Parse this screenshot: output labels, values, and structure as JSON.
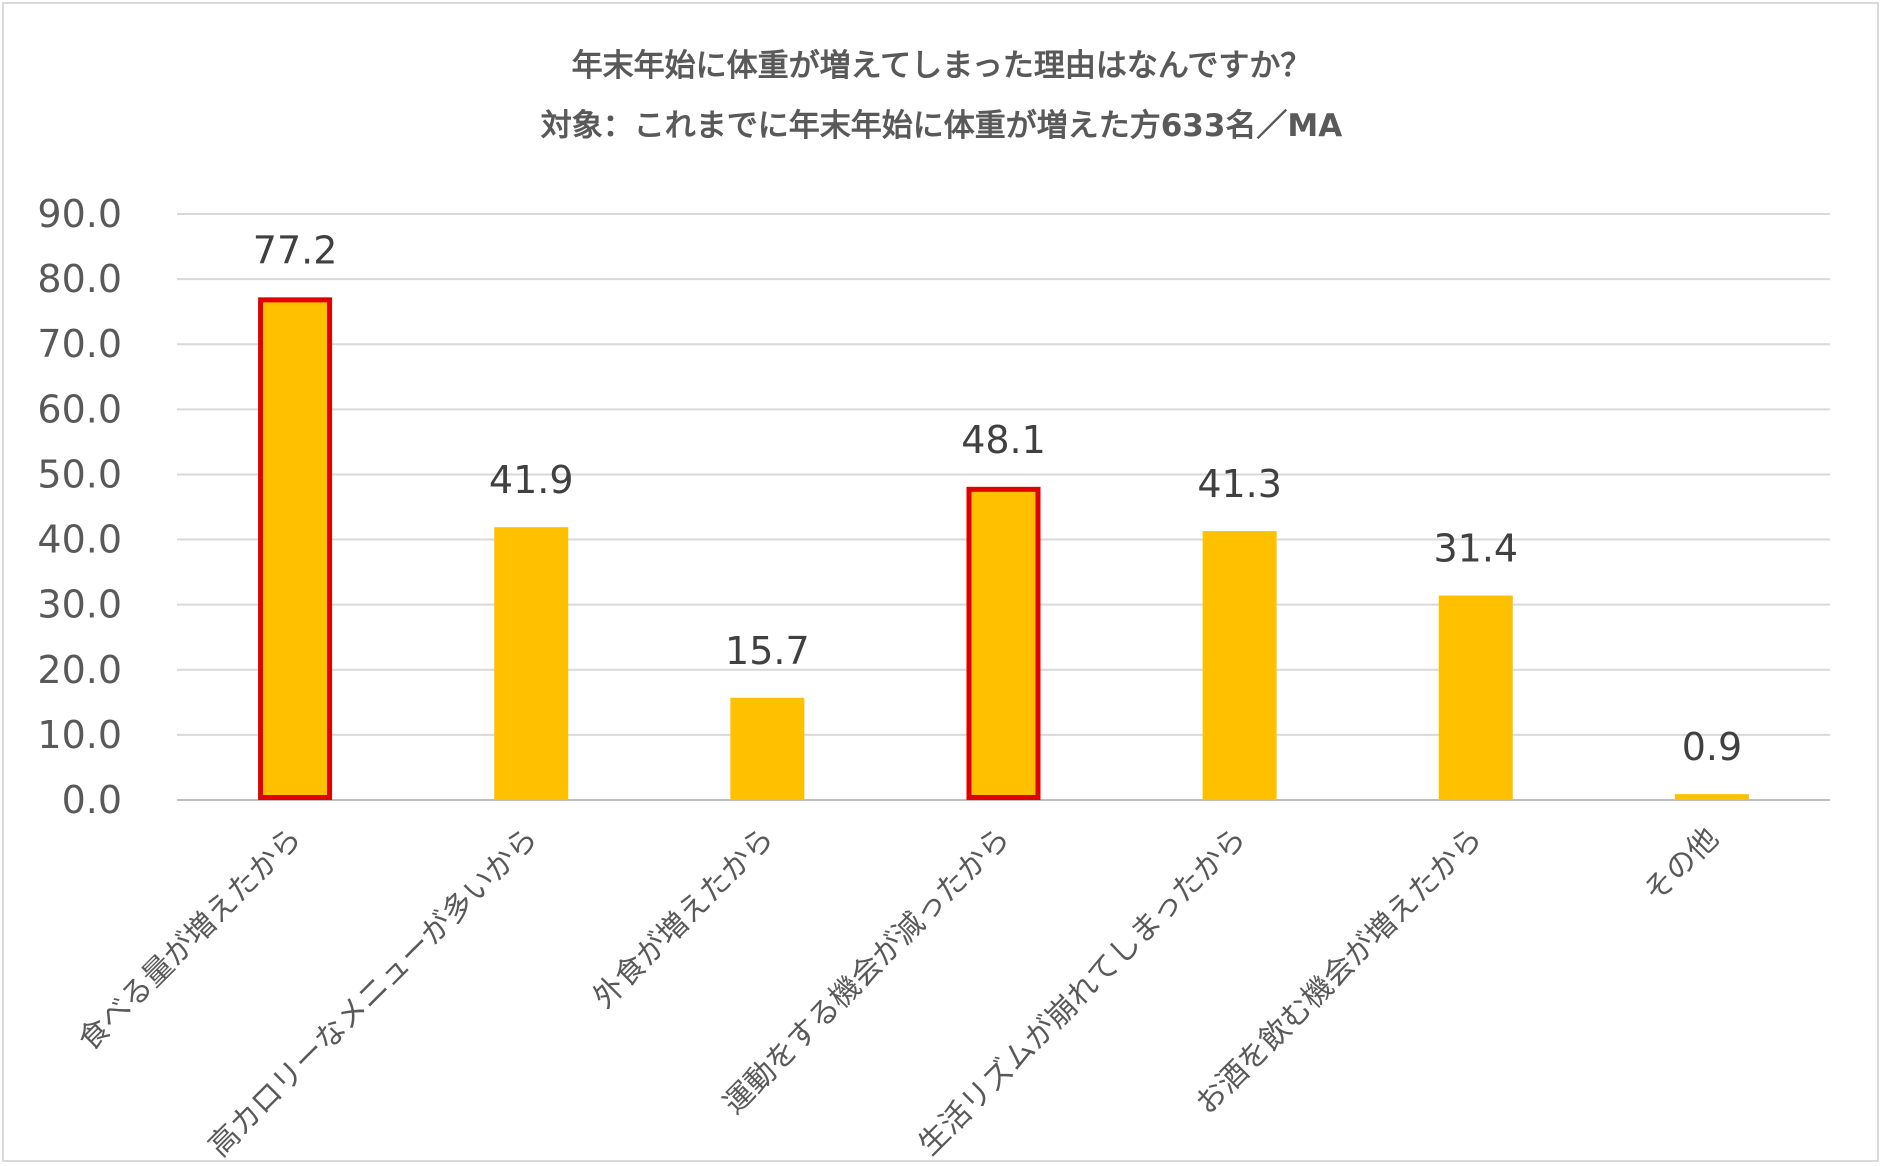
{
  "chart_data": {
    "type": "bar",
    "title": "年末年始に体重が増えてしまった理由はなんですか？",
    "subtitle": "対象：これまでに年末年始に体重が増えた方633名／MA",
    "categories": [
      "食べる量が増えたから",
      "高カロリーなメニューが多いから",
      "外食が増えたから",
      "運動をする機会が減ったから",
      "生活リズムが崩れてしまったから",
      "お酒を飲む機会が増えたから",
      "その他"
    ],
    "values": [
      77.2,
      41.9,
      15.7,
      48.1,
      41.3,
      31.4,
      0.9
    ],
    "value_labels": [
      "77.2",
      "41.9",
      "15.7",
      "48.1",
      "41.3",
      "31.4",
      "0.9"
    ],
    "highlighted": [
      true,
      false,
      false,
      true,
      false,
      false,
      false
    ],
    "ylim": [
      0,
      90
    ],
    "yticks": [
      "0.0",
      "10.0",
      "20.0",
      "30.0",
      "40.0",
      "50.0",
      "60.0",
      "70.0",
      "80.0",
      "90.0"
    ],
    "ytick_values": [
      0,
      10,
      20,
      30,
      40,
      50,
      60,
      70,
      80,
      90
    ],
    "grid": true,
    "colors": {
      "bar": "#FFC000",
      "highlight_border": "#E00000",
      "grid": "#d9d9d9",
      "axis": "#bfbfbf"
    }
  }
}
